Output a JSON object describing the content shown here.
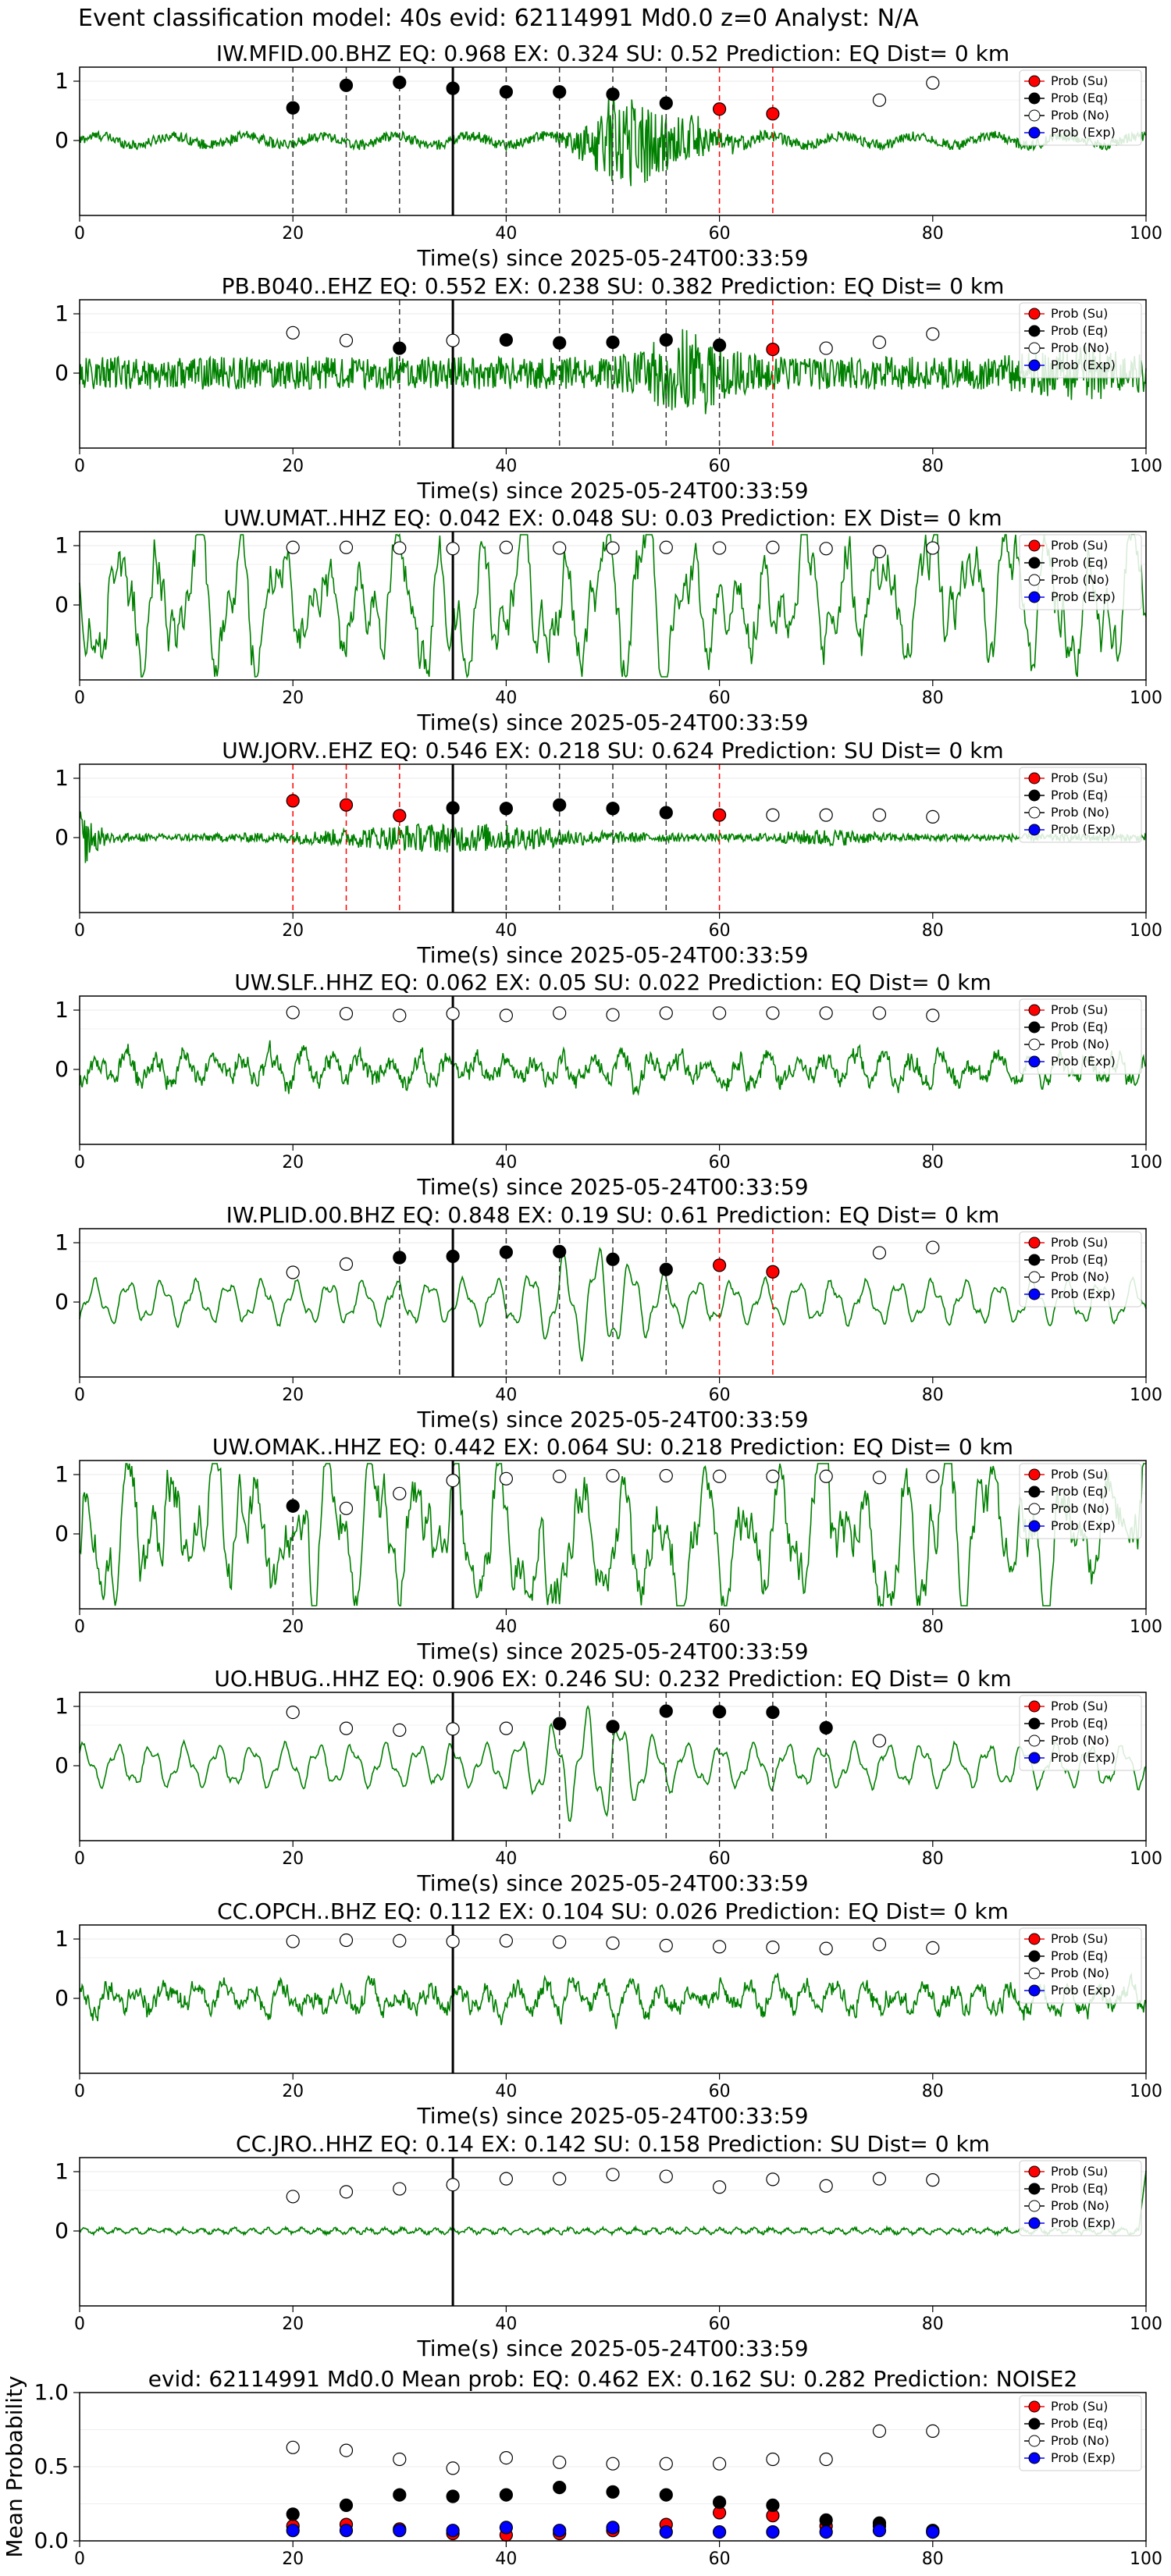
{
  "figure_title": "Event classification model: 40s evid: 62114991 Md0.0 z=0 Analyst: N/A",
  "legend_labels": [
    "Prob (Su)",
    "Prob (Eq)",
    "Prob (No)",
    "Prob (Exp)"
  ],
  "colors": {
    "su": "#ff0000",
    "eq": "#000000",
    "no": "#ffffff",
    "exp": "#0000ff",
    "trace": "#008000"
  },
  "chart_data": [
    {
      "type": "line",
      "title": "IW.MFID.00.BHZ   EQ: 0.968  EX: 0.324  SU: 0.52   Prediction: EQ    Dist= 0 km",
      "xlabel": "Time(s) since 2025-05-24T00:33:59",
      "xlim": [
        0,
        100
      ],
      "xticks": [
        "0",
        "20",
        "40",
        "60",
        "80",
        "100"
      ],
      "yticks": [
        "0",
        "1"
      ],
      "legend": "top-right",
      "character": "burst",
      "points": [
        [
          20,
          0.55,
          "eq"
        ],
        [
          25,
          0.93,
          "eq"
        ],
        [
          30,
          0.98,
          "eq"
        ],
        [
          35,
          0.88,
          "eq"
        ],
        [
          40,
          0.82,
          "eq"
        ],
        [
          45,
          0.82,
          "eq"
        ],
        [
          50,
          0.78,
          "eq"
        ],
        [
          55,
          0.63,
          "eq"
        ],
        [
          60,
          0.53,
          "su"
        ],
        [
          65,
          0.45,
          "su"
        ],
        [
          75,
          0.68,
          "no"
        ],
        [
          80,
          0.97,
          "no"
        ]
      ],
      "markers": [
        [
          20,
          "eq"
        ],
        [
          25,
          "eq"
        ],
        [
          30,
          "eq"
        ],
        [
          40,
          "eq"
        ],
        [
          45,
          "eq"
        ],
        [
          50,
          "eq"
        ],
        [
          55,
          "eq"
        ],
        [
          60,
          "su"
        ],
        [
          65,
          "su"
        ]
      ]
    },
    {
      "type": "line",
      "title": "PB.B040..EHZ   EQ: 0.552  EX: 0.238  SU: 0.382   Prediction: EQ    Dist= 0 km",
      "xlabel": "Time(s) since 2025-05-24T00:33:59",
      "xlim": [
        0,
        100
      ],
      "xticks": [
        "0",
        "20",
        "40",
        "60",
        "80",
        "100"
      ],
      "yticks": [
        "0",
        "1"
      ],
      "legend": "top-right",
      "character": "noisyburst",
      "points": [
        [
          20,
          0.68,
          "no"
        ],
        [
          25,
          0.55,
          "no"
        ],
        [
          30,
          0.42,
          "eq"
        ],
        [
          35,
          0.55,
          "no"
        ],
        [
          40,
          0.56,
          "eq"
        ],
        [
          45,
          0.51,
          "eq"
        ],
        [
          50,
          0.52,
          "eq"
        ],
        [
          55,
          0.56,
          "eq"
        ],
        [
          60,
          0.47,
          "eq"
        ],
        [
          65,
          0.4,
          "su"
        ],
        [
          70,
          0.42,
          "no"
        ],
        [
          75,
          0.52,
          "no"
        ],
        [
          80,
          0.66,
          "no"
        ]
      ],
      "markers": [
        [
          30,
          "eq"
        ],
        [
          45,
          "eq"
        ],
        [
          50,
          "eq"
        ],
        [
          55,
          "eq"
        ],
        [
          60,
          "eq"
        ],
        [
          65,
          "su"
        ]
      ]
    },
    {
      "type": "line",
      "title": "UW.UMAT..HHZ   EQ: 0.042  EX: 0.048  SU: 0.03   Prediction: EX    Dist= 0 km",
      "xlabel": "Time(s) since 2025-05-24T00:33:59",
      "xlim": [
        0,
        100
      ],
      "xticks": [
        "0",
        "20",
        "40",
        "60",
        "80",
        "100"
      ],
      "yticks": [
        "0",
        "1"
      ],
      "legend": "top-right",
      "character": "swell",
      "points": [
        [
          20,
          0.97,
          "no"
        ],
        [
          25,
          0.97,
          "no"
        ],
        [
          30,
          0.96,
          "no"
        ],
        [
          35,
          0.95,
          "no"
        ],
        [
          40,
          0.97,
          "no"
        ],
        [
          45,
          0.96,
          "no"
        ],
        [
          50,
          0.96,
          "no"
        ],
        [
          55,
          0.97,
          "no"
        ],
        [
          60,
          0.96,
          "no"
        ],
        [
          65,
          0.97,
          "no"
        ],
        [
          70,
          0.95,
          "no"
        ],
        [
          75,
          0.9,
          "no"
        ],
        [
          80,
          0.96,
          "no"
        ]
      ],
      "markers": []
    },
    {
      "type": "line",
      "title": "UW.JORV..EHZ   EQ: 0.546  EX: 0.218  SU: 0.624   Prediction: SU    Dist= 0 km",
      "xlabel": "Time(s) since 2025-05-24T00:33:59",
      "xlim": [
        0,
        100
      ],
      "xticks": [
        "0",
        "20",
        "40",
        "60",
        "80",
        "100"
      ],
      "yticks": [
        "0",
        "1"
      ],
      "legend": "top-right",
      "character": "quiet",
      "points": [
        [
          20,
          0.62,
          "su"
        ],
        [
          25,
          0.55,
          "su"
        ],
        [
          30,
          0.37,
          "su"
        ],
        [
          35,
          0.5,
          "eq"
        ],
        [
          40,
          0.49,
          "eq"
        ],
        [
          45,
          0.55,
          "eq"
        ],
        [
          50,
          0.49,
          "eq"
        ],
        [
          55,
          0.42,
          "eq"
        ],
        [
          60,
          0.38,
          "su"
        ],
        [
          65,
          0.38,
          "no"
        ],
        [
          70,
          0.38,
          "no"
        ],
        [
          75,
          0.38,
          "no"
        ],
        [
          80,
          0.35,
          "no"
        ]
      ],
      "markers": [
        [
          20,
          "su"
        ],
        [
          25,
          "su"
        ],
        [
          30,
          "su"
        ],
        [
          40,
          "eq"
        ],
        [
          45,
          "eq"
        ],
        [
          50,
          "eq"
        ],
        [
          55,
          "eq"
        ],
        [
          60,
          "su"
        ]
      ]
    },
    {
      "type": "line",
      "title": "UW.SLF..HHZ   EQ: 0.062  EX: 0.05  SU: 0.022   Prediction: EQ    Dist= 0 km",
      "xlabel": "Time(s) since 2025-05-24T00:33:59",
      "xlim": [
        0,
        100
      ],
      "xticks": [
        "0",
        "20",
        "40",
        "60",
        "80",
        "100"
      ],
      "yticks": [
        "0",
        "1"
      ],
      "legend": "top-right",
      "character": "noise",
      "points": [
        [
          20,
          0.96,
          "no"
        ],
        [
          25,
          0.94,
          "no"
        ],
        [
          30,
          0.91,
          "no"
        ],
        [
          35,
          0.94,
          "no"
        ],
        [
          40,
          0.91,
          "no"
        ],
        [
          45,
          0.95,
          "no"
        ],
        [
          50,
          0.92,
          "no"
        ],
        [
          55,
          0.95,
          "no"
        ],
        [
          60,
          0.95,
          "no"
        ],
        [
          65,
          0.95,
          "no"
        ],
        [
          70,
          0.95,
          "no"
        ],
        [
          75,
          0.95,
          "no"
        ],
        [
          80,
          0.91,
          "no"
        ]
      ],
      "markers": []
    },
    {
      "type": "line",
      "title": "IW.PLID.00.BHZ   EQ: 0.848  EX: 0.19  SU: 0.61   Prediction: EQ    Dist= 0 km",
      "xlabel": "Time(s) since 2025-05-24T00:33:59",
      "xlim": [
        0,
        100
      ],
      "xticks": [
        "0",
        "20",
        "40",
        "60",
        "80",
        "100"
      ],
      "yticks": [
        "0",
        "1"
      ],
      "legend": "top-right",
      "character": "smooth",
      "points": [
        [
          20,
          0.5,
          "no"
        ],
        [
          25,
          0.64,
          "no"
        ],
        [
          30,
          0.75,
          "eq"
        ],
        [
          35,
          0.77,
          "eq"
        ],
        [
          40,
          0.84,
          "eq"
        ],
        [
          45,
          0.85,
          "eq"
        ],
        [
          50,
          0.72,
          "eq"
        ],
        [
          55,
          0.55,
          "eq"
        ],
        [
          60,
          0.62,
          "su"
        ],
        [
          65,
          0.51,
          "su"
        ],
        [
          75,
          0.83,
          "no"
        ],
        [
          80,
          0.92,
          "no"
        ]
      ],
      "markers": [
        [
          30,
          "eq"
        ],
        [
          40,
          "eq"
        ],
        [
          45,
          "eq"
        ],
        [
          50,
          "eq"
        ],
        [
          55,
          "eq"
        ],
        [
          60,
          "su"
        ],
        [
          65,
          "su"
        ]
      ]
    },
    {
      "type": "line",
      "title": "UW.OMAK..HHZ   EQ: 0.442  EX: 0.064  SU: 0.218   Prediction: EQ    Dist= 0 km",
      "xlabel": "Time(s) since 2025-05-24T00:33:59",
      "xlim": [
        0,
        100
      ],
      "xticks": [
        "0",
        "20",
        "40",
        "60",
        "80",
        "100"
      ],
      "yticks": [
        "0",
        "1"
      ],
      "legend": "top-right",
      "character": "swell",
      "points": [
        [
          20,
          0.47,
          "eq"
        ],
        [
          25,
          0.43,
          "no"
        ],
        [
          30,
          0.68,
          "no"
        ],
        [
          35,
          0.9,
          "no"
        ],
        [
          40,
          0.93,
          "no"
        ],
        [
          45,
          0.97,
          "no"
        ],
        [
          50,
          0.98,
          "no"
        ],
        [
          55,
          0.98,
          "no"
        ],
        [
          60,
          0.97,
          "no"
        ],
        [
          65,
          0.97,
          "no"
        ],
        [
          70,
          0.97,
          "no"
        ],
        [
          75,
          0.95,
          "no"
        ],
        [
          80,
          0.97,
          "no"
        ]
      ],
      "markers": [
        [
          20,
          "eq"
        ]
      ]
    },
    {
      "type": "line",
      "title": "UO.HBUG..HHZ   EQ: 0.906  EX: 0.246  SU: 0.232   Prediction: EQ    Dist= 0 km",
      "xlabel": "Time(s) since 2025-05-24T00:33:59",
      "xlim": [
        0,
        100
      ],
      "xticks": [
        "0",
        "20",
        "40",
        "60",
        "80",
        "100"
      ],
      "yticks": [
        "0",
        "1"
      ],
      "legend": "top-right",
      "character": "smooth",
      "points": [
        [
          20,
          0.9,
          "no"
        ],
        [
          25,
          0.63,
          "no"
        ],
        [
          30,
          0.6,
          "no"
        ],
        [
          35,
          0.62,
          "no"
        ],
        [
          40,
          0.63,
          "no"
        ],
        [
          45,
          0.71,
          "eq"
        ],
        [
          50,
          0.66,
          "eq"
        ],
        [
          55,
          0.92,
          "eq"
        ],
        [
          60,
          0.91,
          "eq"
        ],
        [
          65,
          0.9,
          "eq"
        ],
        [
          70,
          0.64,
          "eq"
        ],
        [
          75,
          0.42,
          "no"
        ]
      ],
      "markers": [
        [
          45,
          "eq"
        ],
        [
          50,
          "eq"
        ],
        [
          55,
          "eq"
        ],
        [
          60,
          "eq"
        ],
        [
          65,
          "eq"
        ],
        [
          70,
          "eq"
        ]
      ]
    },
    {
      "type": "line",
      "title": "CC.OPCH..BHZ   EQ: 0.112  EX: 0.104  SU: 0.026   Prediction: EQ    Dist= 0 km",
      "xlabel": "Time(s) since 2025-05-24T00:33:59",
      "xlim": [
        0,
        100
      ],
      "xticks": [
        "0",
        "20",
        "40",
        "60",
        "80",
        "100"
      ],
      "yticks": [
        "0",
        "1"
      ],
      "legend": "top-right",
      "character": "noise",
      "points": [
        [
          20,
          0.96,
          "no"
        ],
        [
          25,
          0.98,
          "no"
        ],
        [
          30,
          0.97,
          "no"
        ],
        [
          35,
          0.96,
          "no"
        ],
        [
          40,
          0.97,
          "no"
        ],
        [
          45,
          0.95,
          "no"
        ],
        [
          50,
          0.93,
          "no"
        ],
        [
          55,
          0.89,
          "no"
        ],
        [
          60,
          0.87,
          "no"
        ],
        [
          65,
          0.86,
          "no"
        ],
        [
          70,
          0.84,
          "no"
        ],
        [
          75,
          0.91,
          "no"
        ],
        [
          80,
          0.85,
          "no"
        ]
      ],
      "markers": []
    },
    {
      "type": "line",
      "title": "CC.JRO..HHZ   EQ: 0.14  EX: 0.142  SU: 0.158   Prediction: SU    Dist= 0 km",
      "xlabel": "Time(s) since 2025-05-24T00:33:59",
      "xlim": [
        0,
        100
      ],
      "xticks": [
        "0",
        "20",
        "40",
        "60",
        "80",
        "100"
      ],
      "yticks": [
        "0",
        "1"
      ],
      "legend": "top-right",
      "character": "flat",
      "points": [
        [
          20,
          0.58,
          "no"
        ],
        [
          25,
          0.66,
          "no"
        ],
        [
          30,
          0.71,
          "no"
        ],
        [
          35,
          0.78,
          "no"
        ],
        [
          40,
          0.88,
          "no"
        ],
        [
          45,
          0.88,
          "no"
        ],
        [
          50,
          0.95,
          "no"
        ],
        [
          55,
          0.92,
          "no"
        ],
        [
          60,
          0.74,
          "no"
        ],
        [
          65,
          0.87,
          "no"
        ],
        [
          70,
          0.76,
          "no"
        ],
        [
          75,
          0.88,
          "no"
        ],
        [
          80,
          0.86,
          "no"
        ]
      ],
      "markers": []
    },
    {
      "type": "scatter",
      "title": "evid: 62114991  Md0.0   Mean prob:   EQ: 0.462  EX: 0.162  SU: 0.282   Prediction: NOISE2",
      "xlabel": "",
      "ylabel": "Mean Probability",
      "xlim": [
        0,
        100
      ],
      "ylim": [
        0,
        1
      ],
      "xticks": [
        "0",
        "20",
        "40",
        "60",
        "80",
        "100"
      ],
      "yticks": [
        "0.0",
        "0.5",
        "1.0"
      ],
      "legend": "top-right",
      "x": [
        20,
        25,
        30,
        35,
        40,
        45,
        50,
        55,
        60,
        65,
        70,
        75,
        80
      ],
      "series": [
        {
          "name": "Prob (Su)",
          "key": "su",
          "values": [
            0.1,
            0.11,
            0.08,
            0.05,
            0.04,
            0.05,
            0.07,
            0.11,
            0.19,
            0.17,
            0.1,
            0.1,
            0.06
          ]
        },
        {
          "name": "Prob (Eq)",
          "key": "eq",
          "values": [
            0.18,
            0.24,
            0.31,
            0.3,
            0.31,
            0.36,
            0.33,
            0.31,
            0.26,
            0.24,
            0.14,
            0.12,
            0.07
          ]
        },
        {
          "name": "Prob (No)",
          "key": "no",
          "values": [
            0.63,
            0.61,
            0.55,
            0.49,
            0.56,
            0.53,
            0.52,
            0.52,
            0.52,
            0.55,
            0.55,
            0.74,
            0.74
          ]
        },
        {
          "name": "Prob (Exp)",
          "key": "exp",
          "values": [
            0.07,
            0.07,
            0.07,
            0.07,
            0.09,
            0.07,
            0.09,
            0.06,
            0.06,
            0.06,
            0.06,
            0.07,
            0.06
          ]
        }
      ]
    }
  ]
}
